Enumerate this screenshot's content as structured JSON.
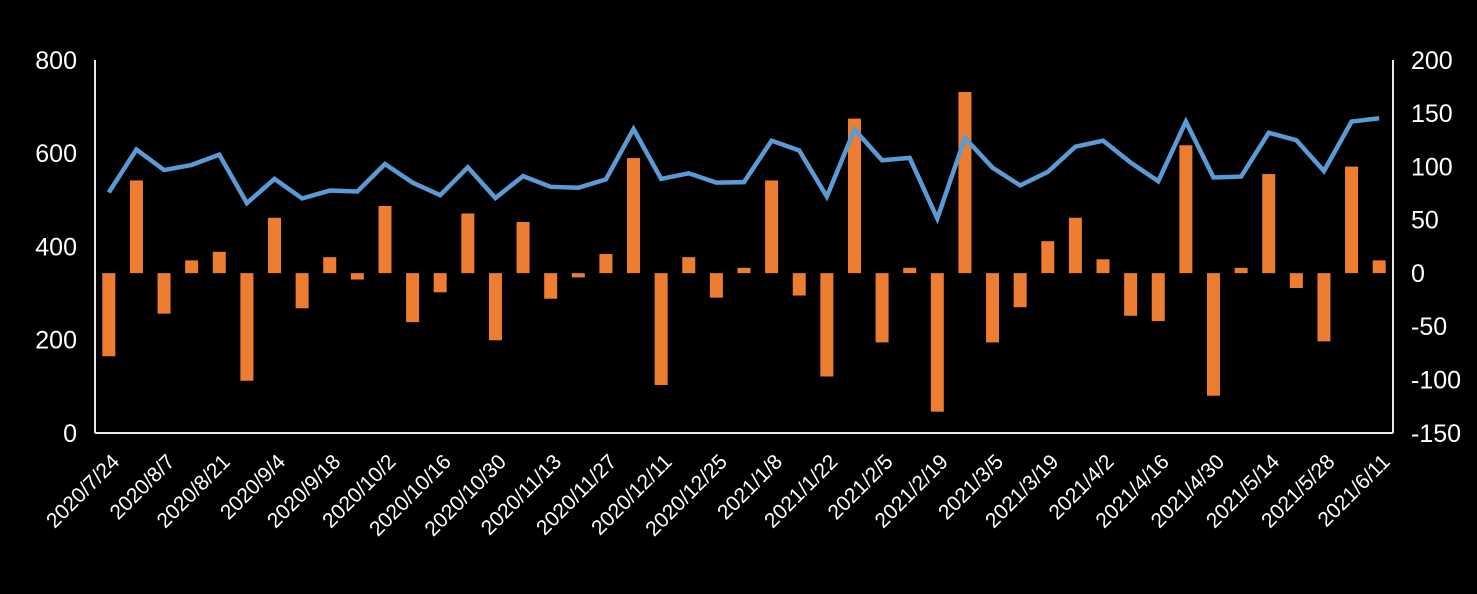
{
  "chart_data": {
    "type": "combo",
    "title": "",
    "background_color": "#000000",
    "text_color": "#FFFFFF",
    "axis_line_color": "#E8E8E8",
    "grid": false,
    "legend": "none",
    "x_tick_labels": [
      "2020/7/24",
      "2020/8/7",
      "2020/8/21",
      "2020/9/4",
      "2020/9/18",
      "2020/10/2",
      "2020/10/16",
      "2020/10/30",
      "2020/11/13",
      "2020/11/27",
      "2020/12/11",
      "2020/12/25",
      "2021/1/8",
      "2021/1/22",
      "2021/2/5",
      "2021/2/19",
      "2021/3/5",
      "2021/3/19",
      "2021/4/2",
      "2021/4/16",
      "2021/4/30",
      "2021/5/14",
      "2021/5/28",
      "2021/6/11"
    ],
    "x_tick_every": 2,
    "points_count": 47,
    "left_axis": {
      "min": 0,
      "max": 800,
      "ticks": [
        800,
        600,
        400,
        200,
        0
      ]
    },
    "right_axis": {
      "min": -150,
      "max": 200,
      "ticks": [
        200,
        150,
        100,
        50,
        0,
        -50,
        -100,
        -150
      ]
    },
    "series": [
      {
        "name": "line-series-left-axis",
        "type": "line",
        "axis": "left",
        "color": "#5B9BD5",
        "values": [
          516,
          608,
          564,
          575,
          597,
          493,
          545,
          503,
          520,
          518,
          577,
          537,
          510,
          570,
          504,
          551,
          528,
          526,
          544,
          652,
          545,
          557,
          537,
          538,
          627,
          606,
          507,
          651,
          585,
          590,
          460,
          633,
          569,
          531,
          560,
          614,
          627,
          580,
          540,
          668,
          548,
          550,
          644,
          628,
          562,
          668,
          675
        ]
      },
      {
        "name": "bar-series-right-axis",
        "type": "bar",
        "axis": "right",
        "color": "#ED7D31",
        "values": [
          -78,
          87,
          -38,
          12,
          20,
          -101,
          52,
          -33,
          15,
          -6,
          63,
          -46,
          -18,
          56,
          -63,
          48,
          -24,
          -4,
          18,
          108,
          -105,
          15,
          -23,
          5,
          87,
          -21,
          -97,
          145,
          -65,
          5,
          -130,
          170,
          -65,
          -32,
          30,
          52,
          13,
          -40,
          -45,
          120,
          -115,
          5,
          93,
          -14,
          -64,
          100,
          12
        ]
      }
    ]
  }
}
